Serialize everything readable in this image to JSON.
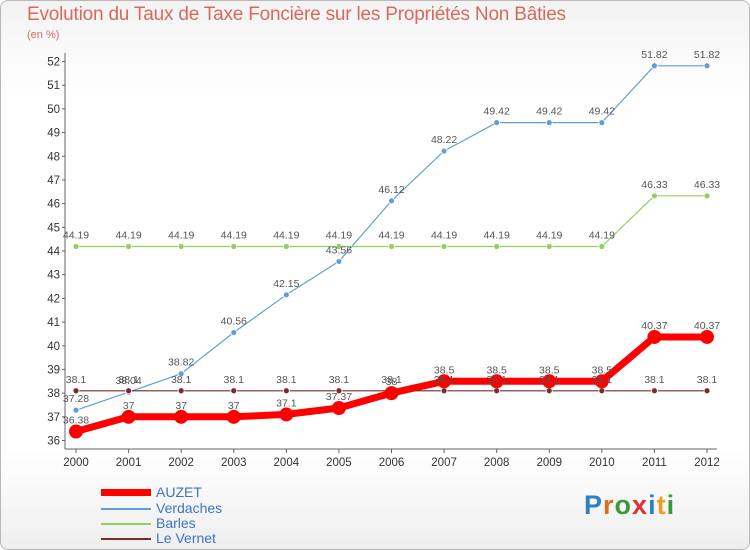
{
  "chart_data": {
    "type": "line",
    "title": "Evolution du Taux de Taxe Foncière sur les Propriétés Non Bâties",
    "subtitle": "(en %)",
    "x": [
      "2000",
      "2001",
      "2002",
      "2003",
      "2004",
      "2005",
      "2006",
      "2007",
      "2008",
      "2009",
      "2010",
      "2011",
      "2012"
    ],
    "ylim": [
      36,
      52
    ],
    "yticks": [
      36,
      37,
      38,
      39,
      40,
      41,
      42,
      43,
      44,
      45,
      46,
      47,
      48,
      49,
      50,
      51,
      52
    ],
    "series": [
      {
        "name": "AUZET",
        "color": "#ff0000",
        "width": 7,
        "marker": 7,
        "values": [
          36.38,
          37,
          37,
          37,
          37.1,
          37.37,
          38,
          38.5,
          38.5,
          38.5,
          38.5,
          40.37,
          40.37
        ],
        "labels": [
          "36.38",
          "37",
          "37",
          "37",
          "37.1",
          "37.37",
          "38",
          "38.5",
          "38.5",
          "38.5",
          "38.5",
          "40.37",
          "40.37"
        ]
      },
      {
        "name": "Verdaches",
        "color": "#5f9fd6",
        "width": 1.2,
        "marker": 3,
        "values": [
          37.28,
          38.04,
          38.82,
          40.56,
          42.15,
          43.56,
          46.12,
          48.22,
          49.42,
          49.42,
          49.42,
          51.82,
          51.82
        ],
        "labels": [
          "37.28",
          "38.04",
          "38.82",
          "40.56",
          "42.15",
          "43.56",
          "46.12",
          "48.22",
          "49.42",
          "49.42",
          "49.42",
          "51.82",
          "51.82"
        ]
      },
      {
        "name": "Barles",
        "color": "#8ed25b",
        "width": 1.2,
        "marker": 3,
        "values": [
          44.19,
          44.19,
          44.19,
          44.19,
          44.19,
          44.19,
          44.19,
          44.19,
          44.19,
          44.19,
          44.19,
          46.33,
          46.33
        ],
        "labels": [
          "44.19",
          "44.19",
          "44.19",
          "44.19",
          "44.19",
          "44.19",
          "44.19",
          "44.19",
          "44.19",
          "44.19",
          "44.19",
          "46.33",
          "46.33"
        ]
      },
      {
        "name": "Le Vernet",
        "color": "#7b2a2a",
        "width": 1.2,
        "marker": 3,
        "values": [
          38.1,
          38.1,
          38.1,
          38.1,
          38.1,
          38.1,
          38.1,
          38.1,
          38.1,
          38.1,
          38.1,
          38.1,
          38.1
        ],
        "labels": [
          "38.1",
          "38.1",
          "38.1",
          "38.1",
          "38.1",
          "38.1",
          "38.1",
          "38.1",
          "38.1",
          "38.1",
          "38.1",
          "38.1",
          "38.1"
        ]
      }
    ],
    "legend_position": "bottom-left",
    "grid": false
  },
  "logo": {
    "text": "Proxiti"
  }
}
